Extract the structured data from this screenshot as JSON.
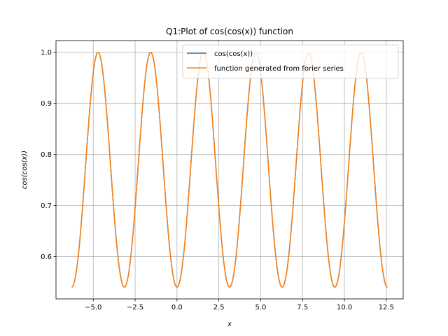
{
  "chart_data": {
    "type": "line",
    "title": "Q1:Plot of cos(cos(x)) function",
    "xlabel": "x",
    "ylabel": "cos(cos(x))",
    "xlim": [
      -7.225,
      13.509
    ],
    "ylim": [
      0.5173,
      1.0229
    ],
    "x_ticks": [
      -5.0,
      -2.5,
      0.0,
      2.5,
      5.0,
      7.5,
      10.0,
      12.5
    ],
    "x_tick_labels": [
      "−5.0",
      "−2.5",
      "0.0",
      "2.5",
      "5.0",
      "7.5",
      "10.0",
      "12.5"
    ],
    "y_ticks": [
      0.6,
      0.7,
      0.8,
      0.9,
      1.0
    ],
    "y_tick_labels": [
      "0.6",
      "0.7",
      "0.8",
      "0.9",
      "1.0"
    ],
    "grid": true,
    "legend_position": "top-right",
    "series": [
      {
        "name": "cos(cos(x))",
        "color": "#1f77b4",
        "function": "cos(cos(x))",
        "x_range": [
          -6.283,
          12.566
        ],
        "x": [
          -6.283,
          -5.498,
          -4.712,
          -3.927,
          -3.142,
          -2.356,
          -1.571,
          -0.785,
          0.0,
          0.785,
          1.571,
          2.356,
          3.142,
          3.927,
          4.712,
          5.498,
          6.283,
          7.069,
          7.854,
          8.639,
          9.425,
          10.21,
          10.996,
          11.781,
          12.566
        ],
        "y": [
          0.5403,
          0.7602,
          1.0,
          0.7602,
          0.5403,
          0.7602,
          1.0,
          0.7602,
          0.5403,
          0.7602,
          1.0,
          0.7602,
          0.5403,
          0.7602,
          1.0,
          0.7602,
          0.5403,
          0.7602,
          1.0,
          0.7602,
          0.5403,
          0.7602,
          1.0,
          0.7602,
          0.5403
        ]
      },
      {
        "name": "function generated from forier series",
        "color": "#ff7f0e",
        "function": "cos(cos(x))",
        "x_range": [
          -6.283,
          12.566
        ],
        "x": [
          -6.283,
          -5.498,
          -4.712,
          -3.927,
          -3.142,
          -2.356,
          -1.571,
          -0.785,
          0.0,
          0.785,
          1.571,
          2.356,
          3.142,
          3.927,
          4.712,
          5.498,
          6.283,
          7.069,
          7.854,
          8.639,
          9.425,
          10.21,
          10.996,
          11.781,
          12.566
        ],
        "y": [
          0.5403,
          0.7602,
          1.0,
          0.7602,
          0.5403,
          0.7602,
          1.0,
          0.7602,
          0.5403,
          0.7602,
          1.0,
          0.7602,
          0.5403,
          0.7602,
          1.0,
          0.7602,
          0.5403,
          0.7602,
          1.0,
          0.7602,
          0.5403,
          0.7602,
          1.0,
          0.7602,
          0.5403
        ]
      }
    ]
  }
}
